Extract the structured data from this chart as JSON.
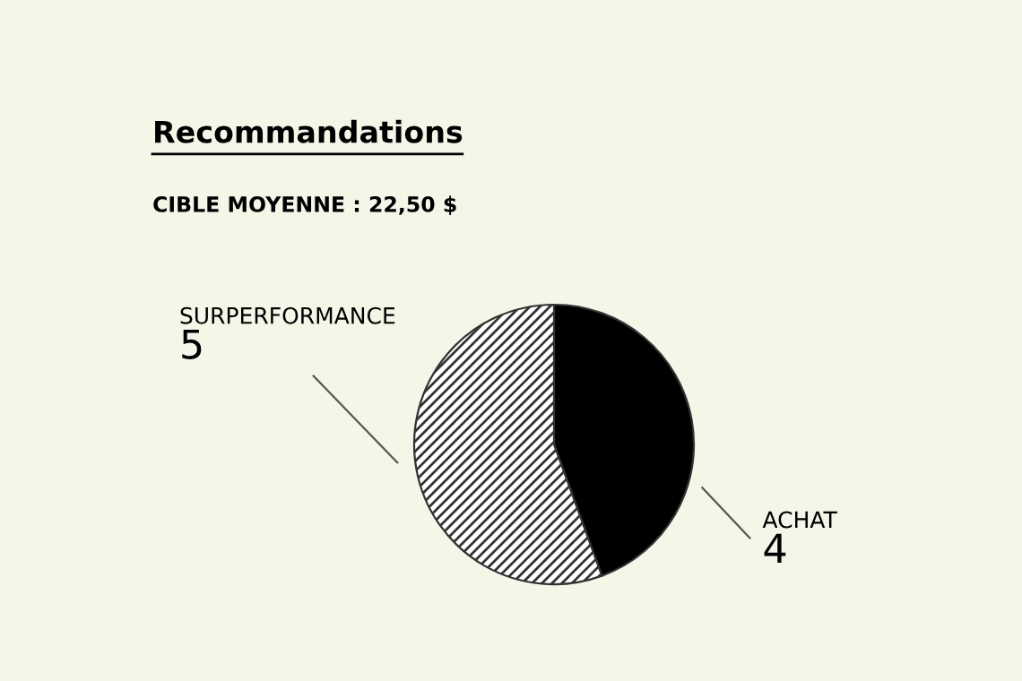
{
  "chart_data": {
    "type": "pie",
    "title": "Recommandations",
    "subtitle": "CIBLE MOYENNE : 22,50 $",
    "categories": [
      "ACHAT",
      "SURPERFORMANCE"
    ],
    "values": [
      4,
      5
    ],
    "colors": [
      "#000000",
      "#333333"
    ],
    "data_labels": true
  }
}
